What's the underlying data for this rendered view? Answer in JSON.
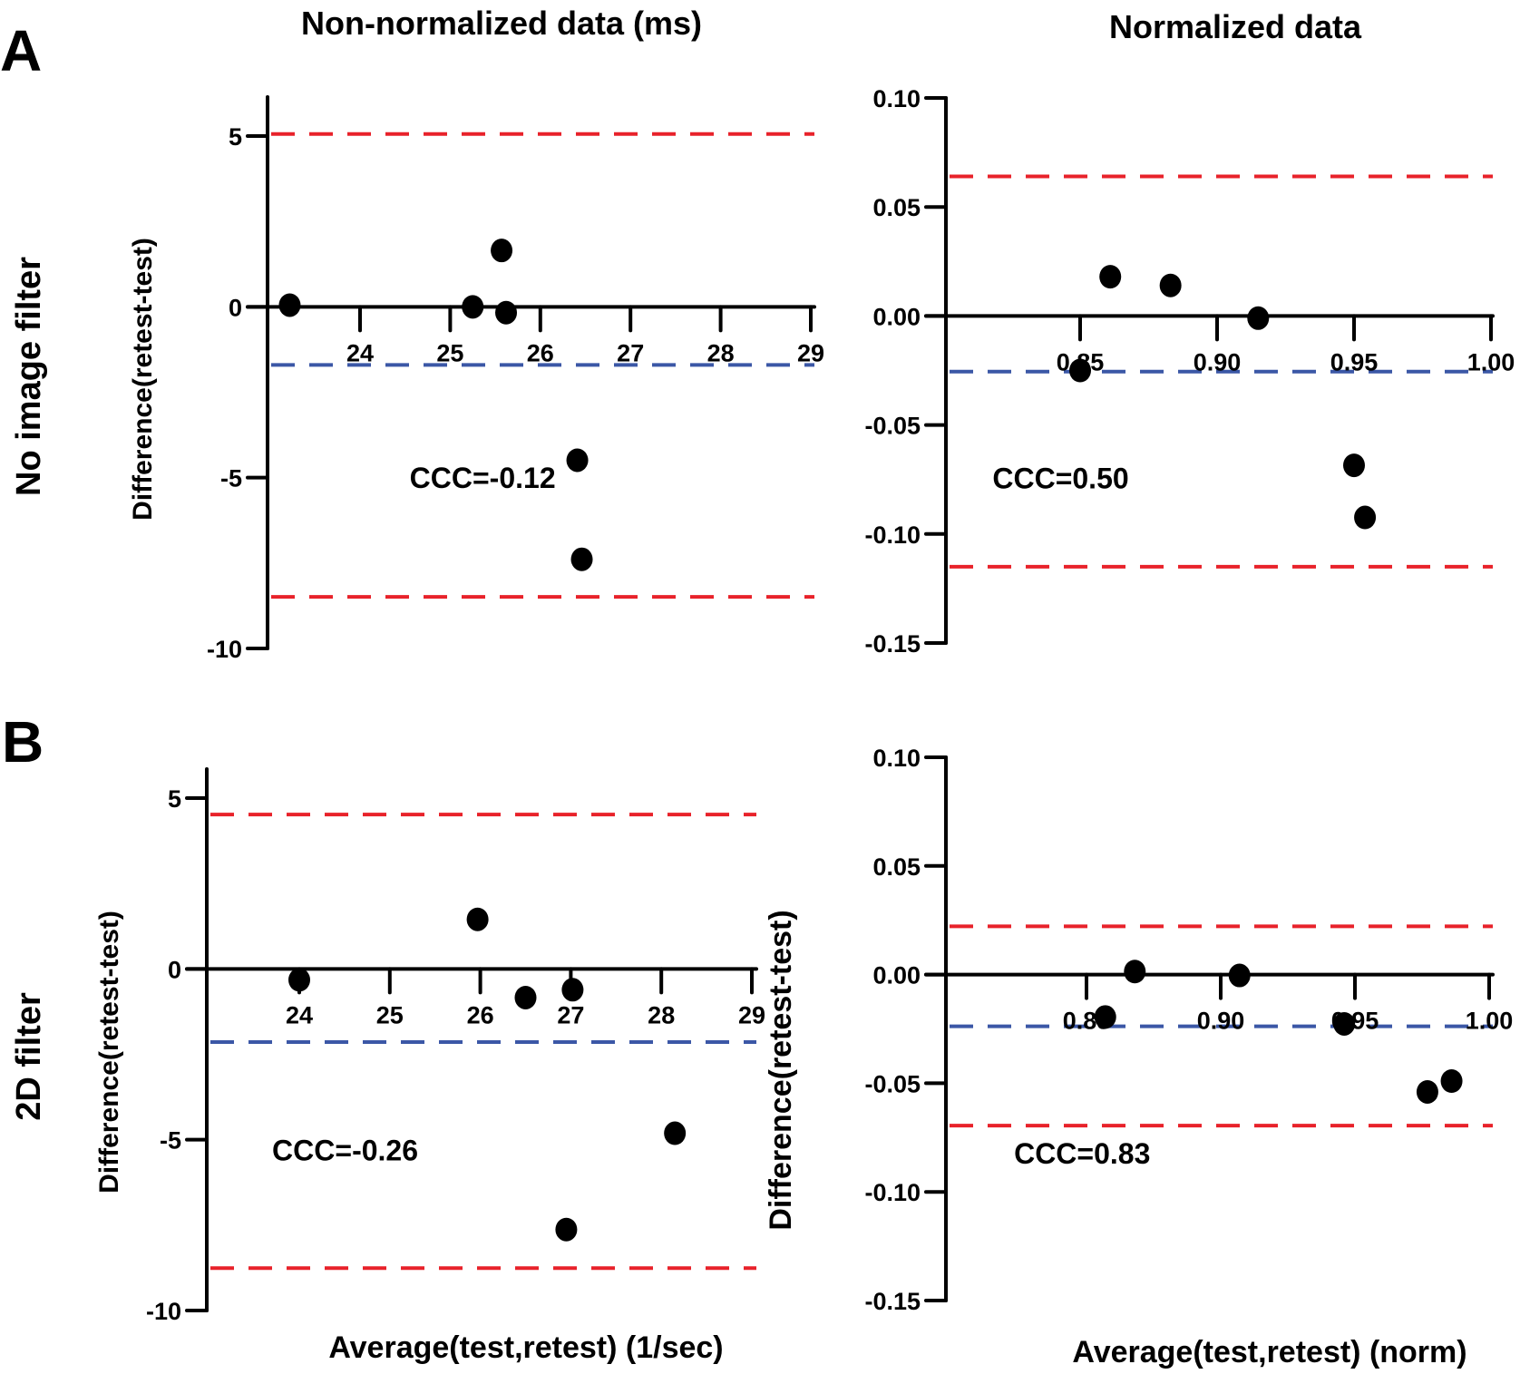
{
  "figure": {
    "panel_letters": [
      "A",
      "B"
    ],
    "column_titles": [
      "Non-normalized data (ms)",
      "Normalized data"
    ],
    "row_titles": [
      "No image filter",
      "2D filter"
    ],
    "x_axis_titles": [
      "Average(test,retest) (1/sec)",
      "Average(test,retest) (norm)"
    ],
    "colors": {
      "points": "#000000",
      "limits_of_agreement": "#e8222a",
      "bias": "#3b57a6",
      "axes": "#000000"
    }
  },
  "chart_data": [
    {
      "id": "A-left",
      "type": "scatter",
      "title": "Non-normalized data (ms)",
      "row": "No image filter",
      "xlabel": "",
      "ylabel": "Difference(retest-test)",
      "xlim": [
        23,
        29
      ],
      "ylim": [
        -10,
        6
      ],
      "xticks": [
        24,
        25,
        26,
        27,
        28,
        29
      ],
      "xtick_labels": [
        "24",
        "25",
        "26",
        "27",
        "28",
        "29"
      ],
      "yticks": [
        5,
        0,
        -5,
        -10
      ],
      "ytick_labels": [
        "5",
        "0",
        "-5",
        "-10"
      ],
      "points": [
        {
          "x": 23.22,
          "y": 0.05
        },
        {
          "x": 25.25,
          "y": 0.0
        },
        {
          "x": 25.57,
          "y": 1.65
        },
        {
          "x": 25.62,
          "y": -0.17
        },
        {
          "x": 26.41,
          "y": -4.49
        },
        {
          "x": 26.46,
          "y": -7.39
        }
      ],
      "bias": -1.7,
      "upper_loa": 5.06,
      "lower_loa": -8.49,
      "annotation": "CCC=-0.12",
      "annotation_pos": {
        "x": 24.55,
        "y": -5.3
      },
      "grid": false
    },
    {
      "id": "A-right",
      "type": "scatter",
      "title": "Normalized data",
      "row": "No image filter",
      "xlabel": "",
      "ylabel": "",
      "xlim": [
        0.8,
        1.0
      ],
      "ylim": [
        -0.15,
        0.1
      ],
      "xticks": [
        0.85,
        0.9,
        0.95,
        1.0
      ],
      "xtick_labels": [
        "0.85",
        "0.90",
        "0.95",
        "1.00"
      ],
      "yticks": [
        0.1,
        0.05,
        0.0,
        -0.05,
        -0.1,
        -0.15
      ],
      "ytick_labels": [
        "0.10",
        "0.05",
        "0.00",
        "-0.05",
        "-0.10",
        "-0.15"
      ],
      "points": [
        {
          "x": 0.861,
          "y": 0.018
        },
        {
          "x": 0.883,
          "y": 0.014
        },
        {
          "x": 0.915,
          "y": -0.001
        },
        {
          "x": 0.85,
          "y": -0.025
        },
        {
          "x": 0.95,
          "y": -0.0685
        },
        {
          "x": 0.954,
          "y": -0.0924
        }
      ],
      "bias": -0.0255,
      "upper_loa": 0.064,
      "lower_loa": -0.115,
      "annotation": "CCC=0.50",
      "annotation_pos": {
        "x": 0.818,
        "y": -0.079
      },
      "grid": false
    },
    {
      "id": "B-left",
      "type": "scatter",
      "title": "",
      "row": "2D filter",
      "xlabel": "Average(test,retest) (1/sec)",
      "ylabel": "Difference(retest-test)",
      "xlim": [
        23,
        29
      ],
      "ylim": [
        -10,
        6
      ],
      "xticks": [
        24,
        25,
        26,
        27,
        28,
        29
      ],
      "xtick_labels": [
        "24",
        "25",
        "26",
        "27",
        "28",
        "29"
      ],
      "yticks": [
        5,
        0,
        -5,
        -10
      ],
      "ytick_labels": [
        "5",
        "0",
        "-5",
        "-10"
      ],
      "points": [
        {
          "x": 24.0,
          "y": -0.32
        },
        {
          "x": 25.97,
          "y": 1.45
        },
        {
          "x": 26.5,
          "y": -0.84
        },
        {
          "x": 27.02,
          "y": -0.61
        },
        {
          "x": 28.15,
          "y": -4.81
        },
        {
          "x": 26.95,
          "y": -7.63
        }
      ],
      "bias": -2.14,
      "upper_loa": 4.52,
      "lower_loa": -8.76,
      "annotation": "CCC=-0.26",
      "annotation_pos": {
        "x": 23.7,
        "y": -5.6
      },
      "grid": false
    },
    {
      "id": "B-right",
      "type": "scatter",
      "title": "",
      "row": "2D filter",
      "xlabel": "Average(test,retest) (norm)",
      "ylabel": "Difference(retest-test)",
      "xlim": [
        0.8,
        1.0
      ],
      "ylim": [
        -0.15,
        0.1
      ],
      "xticks": [
        0.85,
        0.9,
        0.95,
        1.0
      ],
      "xtick_labels": [
        "0.85",
        "0.90",
        "0.95",
        "1.00"
      ],
      "yticks": [
        0.1,
        0.05,
        0.0,
        -0.05,
        -0.1,
        -0.15
      ],
      "ytick_labels": [
        "0.10",
        "0.05",
        "0.00",
        "-0.05",
        "-0.10",
        "-0.15"
      ],
      "points": [
        {
          "x": 0.857,
          "y": -0.0195
        },
        {
          "x": 0.868,
          "y": 0.0014
        },
        {
          "x": 0.907,
          "y": -0.0004
        },
        {
          "x": 0.946,
          "y": -0.0227
        },
        {
          "x": 0.977,
          "y": -0.054
        },
        {
          "x": 0.986,
          "y": -0.049
        }
      ],
      "bias": -0.0238,
      "upper_loa": 0.0222,
      "lower_loa": -0.0695,
      "annotation": "CCC=0.83",
      "annotation_pos": {
        "x": 0.823,
        "y": -0.087
      },
      "grid": false
    }
  ]
}
